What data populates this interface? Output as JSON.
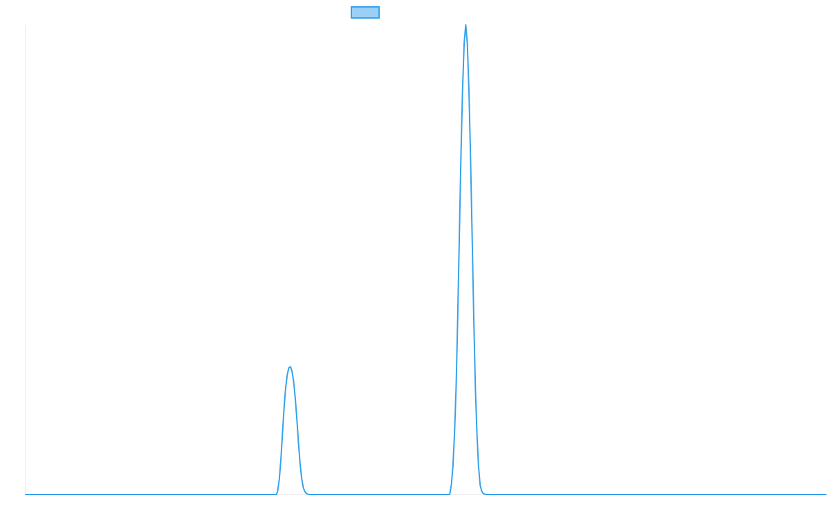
{
  "chart_data": {
    "type": "line",
    "title": "",
    "xlabel": "",
    "ylabel": "",
    "grid": false,
    "legend": {
      "position": "top-center",
      "entries": [
        {
          "name": "",
          "color": "#36a2eb",
          "fill": "#9ad0f5"
        }
      ]
    },
    "xlim": [
      0,
      1000
    ],
    "ylim": [
      0,
      1
    ],
    "series": [
      {
        "name": "",
        "color": "#36a2eb",
        "x": [
          0,
          313.5,
          315,
          317,
          319,
          321,
          323,
          325,
          327,
          329,
          331,
          333,
          335,
          337,
          339,
          341,
          343,
          345,
          347,
          349,
          351,
          353,
          354.5,
          530,
          532,
          534,
          536,
          538,
          540,
          542,
          544,
          546,
          548,
          550,
          552,
          554,
          556,
          558,
          560,
          562,
          564,
          566,
          568,
          570,
          572,
          574,
          576,
          1000
        ],
        "y": [
          0,
          0,
          0.008,
          0.032,
          0.074,
          0.13,
          0.185,
          0.228,
          0.255,
          0.27,
          0.272,
          0.262,
          0.24,
          0.205,
          0.16,
          0.11,
          0.066,
          0.034,
          0.015,
          0.006,
          0.002,
          0.0005,
          0,
          0,
          0.02,
          0.06,
          0.13,
          0.23,
          0.38,
          0.55,
          0.72,
          0.86,
          0.96,
          1.0,
          0.96,
          0.86,
          0.72,
          0.55,
          0.38,
          0.23,
          0.13,
          0.06,
          0.02,
          0.007,
          0.002,
          0.0005,
          0,
          0
        ]
      }
    ]
  }
}
